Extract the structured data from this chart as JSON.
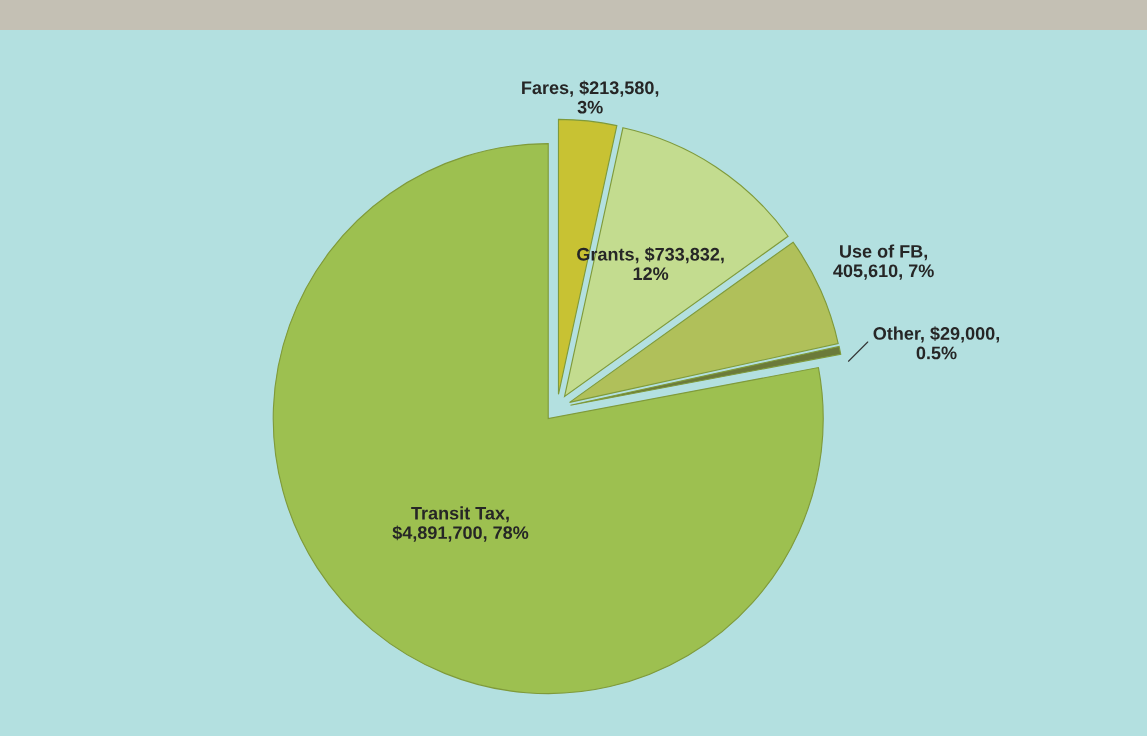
{
  "chart_data": {
    "type": "pie",
    "categories": [
      "Fares",
      "Grants",
      "Use of FB",
      "Other",
      "Transit Tax"
    ],
    "values": [
      213580,
      733832,
      405610,
      29000,
      4891700
    ],
    "colors": [
      "#c8c233",
      "#c3dc8f",
      "#b0c05a",
      "#6b7a3a",
      "#9dc050"
    ],
    "value_labels": [
      ", $213,580,\n3%",
      ", $733,832,\n12%",
      ",\n405,610, 7%",
      ", $29,000,\n0.5%",
      ",\n$4,891,700, 78%"
    ],
    "legend": false
  }
}
